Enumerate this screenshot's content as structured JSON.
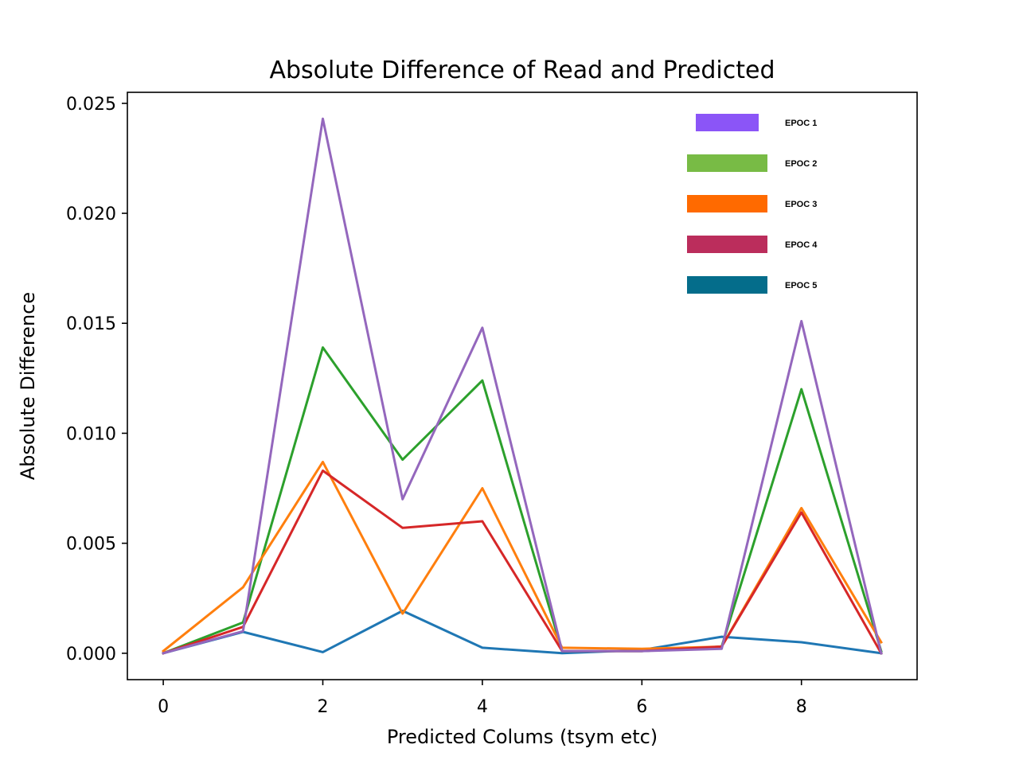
{
  "chart_data": {
    "type": "line",
    "title": "Absolute Difference of Read and Predicted",
    "xlabel": "Predicted Colums (tsym etc)",
    "ylabel": "Absolute Difference",
    "x": [
      0,
      1,
      2,
      3,
      4,
      5,
      6,
      7,
      8,
      9
    ],
    "xlim": [
      -0.45,
      9.45
    ],
    "ylim": [
      -0.0012,
      0.0255
    ],
    "xticks": [
      0,
      2,
      4,
      6,
      8
    ],
    "xtick_labels": [
      "0",
      "2",
      "4",
      "6",
      "8"
    ],
    "yticks": [
      0,
      0.005,
      0.01,
      0.015,
      0.02,
      0.025
    ],
    "ytick_labels": [
      "0.000",
      "0.005",
      "0.010",
      "0.015",
      "0.020",
      "0.025"
    ],
    "grid": false,
    "legend_position": "top-right",
    "series": [
      {
        "color": "#1f77b4",
        "values": [
          0.0,
          0.00097,
          5e-05,
          0.00193,
          0.00025,
          0.0,
          0.00015,
          0.00075,
          0.0005,
          0.0
        ]
      },
      {
        "color": "#2ca02c",
        "values": [
          0.0,
          0.0014,
          0.0139,
          0.0088,
          0.0124,
          0.0001,
          0.0001,
          0.0003,
          0.012,
          0.0001
        ]
      },
      {
        "color": "#ff7f0e",
        "values": [
          0.0001,
          0.003,
          0.0087,
          0.0018,
          0.0075,
          0.00025,
          0.0002,
          0.0003,
          0.0066,
          0.0005
        ]
      },
      {
        "color": "#d62728",
        "values": [
          0.0,
          0.0012,
          0.0083,
          0.0057,
          0.006,
          0.0001,
          0.0001,
          0.0003,
          0.0064,
          0.0
        ]
      },
      {
        "color": "#9467bd",
        "values": [
          0.0,
          0.001,
          0.0243,
          0.007,
          0.0148,
          0.0001,
          0.0001,
          0.0002,
          0.0151,
          0.0
        ]
      }
    ],
    "legend": [
      {
        "label": "EPOC 1",
        "color": "#8b55f7"
      },
      {
        "label": "EPOC 2",
        "color": "#78bb45"
      },
      {
        "label": "EPOC 3",
        "color": "#ff6a00"
      },
      {
        "label": "EPOC 4",
        "color": "#bb2d5c"
      },
      {
        "label": "EPOC 5",
        "color": "#046d8b"
      }
    ]
  }
}
